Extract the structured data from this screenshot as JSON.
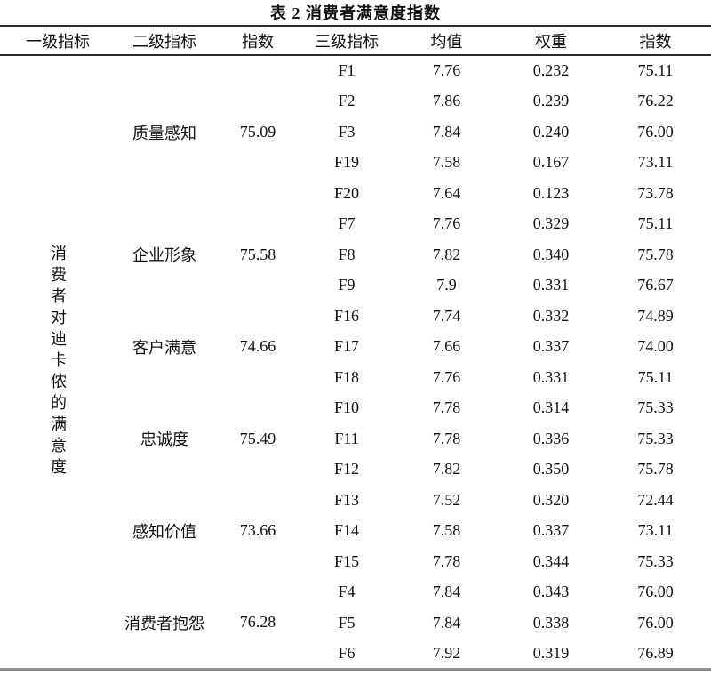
{
  "title": "表 2 消费者满意度指数",
  "columns": [
    "一级指标",
    "二级指标",
    "指数",
    "三级指标",
    "均值",
    "权重",
    "指数"
  ],
  "level1": {
    "label": "消费者对迪卡侬的满意度"
  },
  "groups": [
    {
      "label": "质量感知",
      "index": "75.09"
    },
    {
      "label": "企业形象",
      "index": "75.58"
    },
    {
      "label": "客户满意",
      "index": "74.66"
    },
    {
      "label": "忠诚度",
      "index": "75.49"
    },
    {
      "label": "感知价值",
      "index": "73.66"
    },
    {
      "label": "消费者抱怨",
      "index": "76.28"
    }
  ],
  "rows": [
    {
      "f": "F1",
      "mean": "7.76",
      "weight": "0.232",
      "index": "75.11"
    },
    {
      "f": "F2",
      "mean": "7.86",
      "weight": "0.239",
      "index": "76.22"
    },
    {
      "f": "F3",
      "mean": "7.84",
      "weight": "0.240",
      "index": "76.00"
    },
    {
      "f": "F19",
      "mean": "7.58",
      "weight": "0.167",
      "index": "73.11"
    },
    {
      "f": "F20",
      "mean": "7.64",
      "weight": "0.123",
      "index": "73.78"
    },
    {
      "f": "F7",
      "mean": "7.76",
      "weight": "0.329",
      "index": "75.11"
    },
    {
      "f": "F8",
      "mean": "7.82",
      "weight": "0.340",
      "index": "75.78"
    },
    {
      "f": "F9",
      "mean": "7.9",
      "weight": "0.331",
      "index": "76.67"
    },
    {
      "f": "F16",
      "mean": "7.74",
      "weight": "0.332",
      "index": "74.89"
    },
    {
      "f": "F17",
      "mean": "7.66",
      "weight": "0.337",
      "index": "74.00"
    },
    {
      "f": "F18",
      "mean": "7.76",
      "weight": "0.331",
      "index": "75.11"
    },
    {
      "f": "F10",
      "mean": "7.78",
      "weight": "0.314",
      "index": "75.33"
    },
    {
      "f": "F11",
      "mean": "7.78",
      "weight": "0.336",
      "index": "75.33"
    },
    {
      "f": "F12",
      "mean": "7.82",
      "weight": "0.350",
      "index": "75.78"
    },
    {
      "f": "F13",
      "mean": "7.52",
      "weight": "0.320",
      "index": "72.44"
    },
    {
      "f": "F14",
      "mean": "7.58",
      "weight": "0.337",
      "index": "73.11"
    },
    {
      "f": "F15",
      "mean": "7.78",
      "weight": "0.344",
      "index": "75.33"
    },
    {
      "f": "F4",
      "mean": "7.84",
      "weight": "0.343",
      "index": "76.00"
    },
    {
      "f": "F5",
      "mean": "7.84",
      "weight": "0.338",
      "index": "76.00"
    },
    {
      "f": "F6",
      "mean": "7.92",
      "weight": "0.319",
      "index": "76.89"
    }
  ]
}
